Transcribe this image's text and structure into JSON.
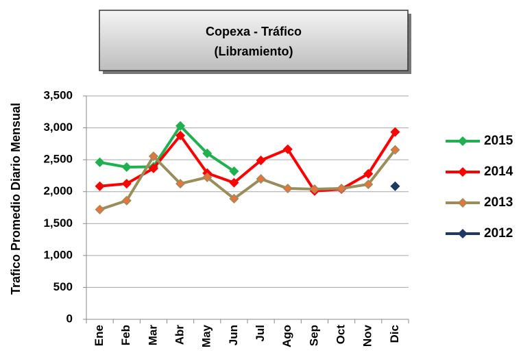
{
  "chart_data": {
    "type": "line",
    "title": [
      "Copexa -  Tráfico",
      "(Libramiento)"
    ],
    "y_label": "Trafico Promedio Diario Mensual",
    "categories": [
      "Ene",
      "Feb",
      "Mar",
      "Abr",
      "May",
      "Jun",
      "Jul",
      "Ago",
      "Sep",
      "Oct",
      "Nov",
      "Dic"
    ],
    "series": [
      {
        "name": "2015",
        "color": "#1fb050",
        "values": [
          2460,
          2385,
          2390,
          3030,
          2600,
          2320,
          null,
          null,
          null,
          null,
          null,
          null
        ]
      },
      {
        "name": "2014",
        "color": "#ff0000",
        "values": [
          2085,
          2125,
          2365,
          2880,
          2290,
          2140,
          2490,
          2665,
          2010,
          2040,
          2280,
          2935
        ]
      },
      {
        "name": "2013",
        "color": "#9b8c5a",
        "marker_color": "#e8743b",
        "values": [
          1720,
          1860,
          2555,
          2125,
          2225,
          1890,
          2200,
          2050,
          2040,
          2050,
          2115,
          2655
        ]
      },
      {
        "name": "2012",
        "color": "#1f3864",
        "values": [
          null,
          null,
          null,
          null,
          null,
          null,
          null,
          null,
          null,
          null,
          null,
          2085
        ]
      }
    ],
    "ylim": [
      0,
      3500
    ],
    "yticks": [
      0,
      500,
      {
        "value": 1000,
        "label": "1,000"
      },
      {
        "value": 1500,
        "label": "1,500"
      },
      {
        "value": 2000,
        "label": "2,000"
      },
      {
        "value": 2500,
        "label": "2,500"
      },
      {
        "value": 3000,
        "label": "3,000"
      },
      {
        "value": 3500,
        "label": "3,500"
      }
    ],
    "grid": true,
    "legend": "right"
  }
}
